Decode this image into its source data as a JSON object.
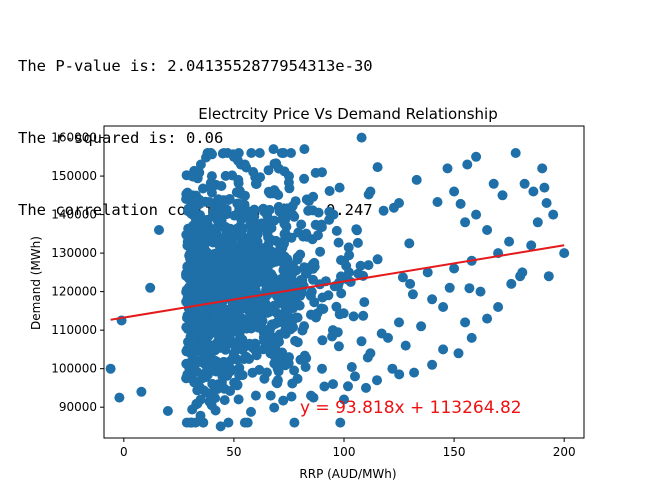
{
  "output": {
    "lines": [
      "The P-value is: 2.0413552877954313e-30",
      "The r-squared is: 0.06",
      "The correlation coefficient is : 0.247"
    ]
  },
  "chart_data": {
    "type": "scatter",
    "title": "Electrcity Price Vs Demand Relationship",
    "xlabel": "RRP (AUD/MWh)",
    "ylabel": "Demand (MWh)",
    "xlim": [
      -9,
      209
    ],
    "ylim": [
      82000,
      163000
    ],
    "x_ticks": [
      0,
      50,
      100,
      150,
      200
    ],
    "y_ticks": [
      90000,
      100000,
      110000,
      120000,
      130000,
      140000,
      150000,
      160000
    ],
    "x_tick_labels": [
      "0",
      "50",
      "100",
      "150",
      "200"
    ],
    "y_tick_labels": [
      "90000",
      "100000",
      "110000",
      "120000",
      "130000",
      "140000",
      "150000",
      "160000"
    ],
    "grid": false,
    "colors": {
      "points": "#1f6fa8",
      "regression": "#e41a1c",
      "equation": "#ee1111"
    },
    "regression": {
      "slope": 93.818,
      "intercept": 113264.82,
      "x_range": [
        -6,
        200
      ]
    },
    "annotation": {
      "text": "y = 93.818x + 113264.82",
      "x": 80,
      "y": 90000
    },
    "cloud": {
      "center": [
        45,
        121000
      ],
      "spread": [
        28,
        14000
      ],
      "count": 1300
    },
    "points": [
      [
        -6,
        100000
      ],
      [
        -2,
        92500
      ],
      [
        -1,
        112500
      ],
      [
        8,
        94000
      ],
      [
        12,
        121000
      ],
      [
        16,
        136000
      ],
      [
        20,
        89000
      ],
      [
        30,
        86000
      ],
      [
        44,
        85000
      ],
      [
        40,
        150000
      ],
      [
        35,
        153000
      ],
      [
        50,
        155000
      ],
      [
        52,
        149000
      ],
      [
        55,
        153000
      ],
      [
        68,
        157000
      ],
      [
        82,
        157000
      ],
      [
        108,
        160000
      ],
      [
        118,
        141000
      ],
      [
        133,
        149000
      ],
      [
        147,
        152000
      ],
      [
        150,
        146000
      ],
      [
        156,
        153000
      ],
      [
        160,
        155000
      ],
      [
        168,
        148000
      ],
      [
        172,
        145000
      ],
      [
        178,
        156000
      ],
      [
        182,
        148000
      ],
      [
        186,
        146000
      ],
      [
        188,
        138000
      ],
      [
        190,
        152000
      ],
      [
        191,
        147000
      ],
      [
        192,
        143000
      ],
      [
        195,
        140000
      ],
      [
        200,
        130000
      ],
      [
        193,
        124000
      ],
      [
        185,
        132000
      ],
      [
        180,
        124000
      ],
      [
        175,
        133000
      ],
      [
        170,
        130000
      ],
      [
        165,
        136000
      ],
      [
        160,
        140000
      ],
      [
        155,
        138000
      ],
      [
        158,
        128000
      ],
      [
        150,
        126000
      ],
      [
        148,
        121000
      ],
      [
        145,
        116000
      ],
      [
        140,
        118000
      ],
      [
        138,
        125000
      ],
      [
        135,
        111000
      ],
      [
        130,
        122000
      ],
      [
        128,
        106000
      ],
      [
        125,
        112000
      ],
      [
        122,
        100000
      ],
      [
        120,
        108000
      ],
      [
        115,
        97000
      ],
      [
        112,
        104000
      ],
      [
        110,
        95000
      ],
      [
        105,
        98000
      ],
      [
        100,
        92000
      ],
      [
        95,
        96000
      ],
      [
        90,
        100000
      ],
      [
        85,
        93000
      ],
      [
        75,
        103000
      ],
      [
        70,
        97000
      ],
      [
        65,
        99000
      ],
      [
        60,
        93000
      ],
      [
        155,
        112000
      ],
      [
        162,
        120000
      ],
      [
        170,
        116000
      ],
      [
        176,
        122000
      ],
      [
        181,
        125000
      ],
      [
        165,
        113000
      ],
      [
        158,
        108000
      ],
      [
        152,
        104000
      ],
      [
        145,
        105000
      ],
      [
        140,
        101000
      ],
      [
        125,
        143000
      ],
      [
        112,
        146000
      ],
      [
        98,
        147000
      ],
      [
        90,
        151000
      ],
      [
        75,
        150000
      ],
      [
        60,
        148000
      ]
    ]
  }
}
